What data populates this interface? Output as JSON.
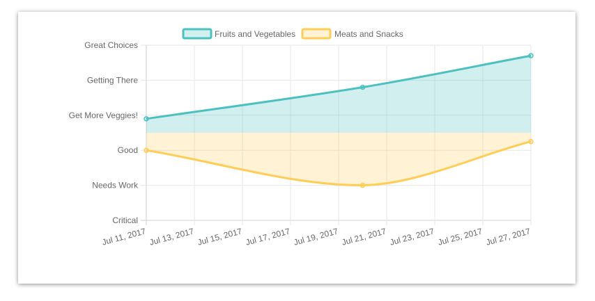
{
  "chart_data": {
    "type": "area",
    "x_type": "date",
    "x_ticks": [
      "Jul 11, 2017",
      "Jul 13, 2017",
      "Jul 15, 2017",
      "Jul 17, 2017",
      "Jul 19, 2017",
      "Jul 21, 2017",
      "Jul 23, 2017",
      "Jul 25, 2017",
      "Jul 27, 2017"
    ],
    "y_ticks": [
      "Critical",
      "Needs Work",
      "Good",
      "Get More Veggies!",
      "Getting There",
      "Great Choices"
    ],
    "xlim": [
      "2017-07-11",
      "2017-07-27"
    ],
    "ylim": [
      "Critical",
      "Great Choices"
    ],
    "grid": true,
    "legend_position": "top",
    "series": [
      {
        "name": "Fruits and Vegetables",
        "color": "#4bc0c0",
        "fill": "rgba(75,192,192,0.25)",
        "points": [
          {
            "x": "2017-07-11",
            "y": 2.9
          },
          {
            "x": "2017-07-20",
            "y": 3.8
          },
          {
            "x": "2017-07-27",
            "y": 4.7
          }
        ]
      },
      {
        "name": "Meats and Snacks",
        "color": "#ffcd56",
        "fill": "rgba(255,205,86,0.25)",
        "points": [
          {
            "x": "2017-07-11",
            "y": 2.0
          },
          {
            "x": "2017-07-20",
            "y": 1.0
          },
          {
            "x": "2017-07-27",
            "y": 2.25
          }
        ]
      }
    ]
  }
}
